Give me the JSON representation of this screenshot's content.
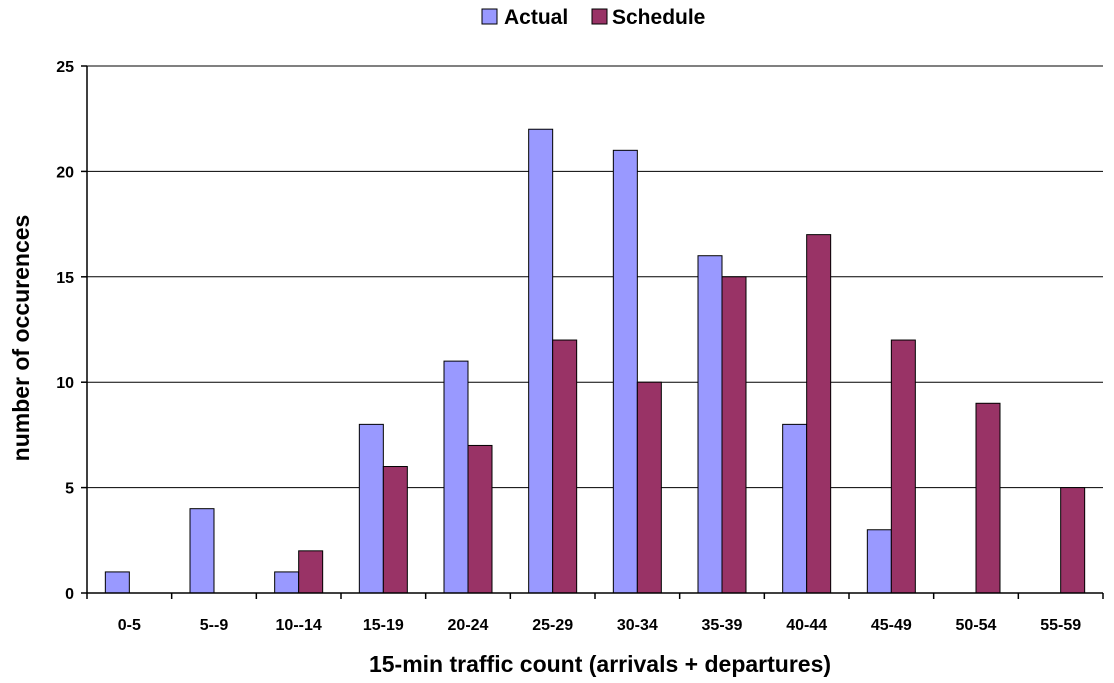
{
  "chart_data": {
    "type": "bar",
    "xlabel": "15-min traffic count (arrivals + departures)",
    "ylabel": "number of occurences",
    "ylim": [
      0,
      25
    ],
    "yticks": [
      0,
      5,
      10,
      15,
      20,
      25
    ],
    "grid": true,
    "legend_position": "top-center",
    "categories": [
      "0-5",
      "5--9",
      "10--14",
      "15-19",
      "20-24",
      "25-29",
      "30-34",
      "35-39",
      "40-44",
      "45-49",
      "50-54",
      "55-59"
    ],
    "series": [
      {
        "name": "Actual",
        "color": "#9999ff",
        "values": [
          1,
          4,
          1,
          8,
          11,
          22,
          21,
          16,
          8,
          3,
          0,
          0
        ]
      },
      {
        "name": "Schedule",
        "color": "#993366",
        "values": [
          0,
          0,
          2,
          6,
          7,
          12,
          10,
          15,
          17,
          12,
          9,
          5
        ]
      }
    ]
  }
}
